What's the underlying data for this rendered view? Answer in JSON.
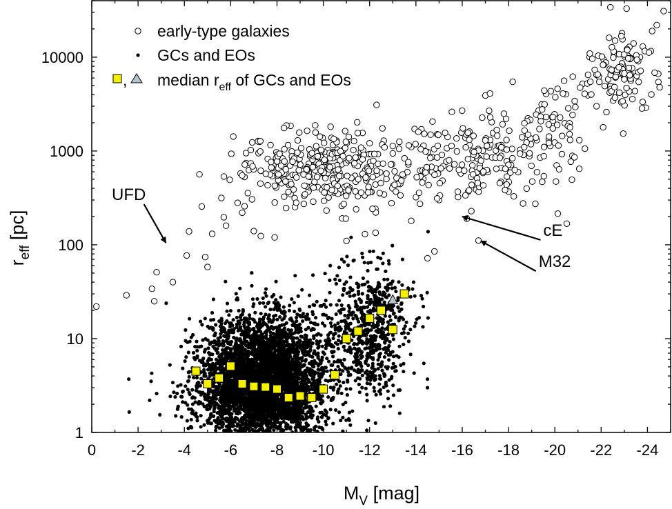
{
  "chart_data": {
    "type": "scatter",
    "title": "",
    "xlabel": {
      "main": "M",
      "sub": "V",
      "rest": " [mag]"
    },
    "ylabel": {
      "main": "r",
      "sub": "eff",
      "rest": " [pc]"
    },
    "x_scale": "linear",
    "x_reversed": true,
    "xlim": [
      0,
      -25
    ],
    "xticks": [
      0,
      -2,
      -4,
      -6,
      -8,
      -10,
      -12,
      -14,
      -16,
      -18,
      -20,
      -22,
      -24
    ],
    "y_scale": "log",
    "ylim": [
      1,
      40000
    ],
    "yticks": [
      1,
      10,
      100,
      1000,
      10000
    ],
    "legend": {
      "position": "top-left",
      "entries": [
        {
          "symbol": "open-circle",
          "label": "early-type galaxies"
        },
        {
          "symbol": "dot",
          "label": "GCs and EOs"
        },
        {
          "symbol": "square+triangle",
          "label_main": "median r",
          "label_sub": "eff",
          "label_rest": " of GCs and EOs"
        }
      ]
    },
    "colors": {
      "median_square": "#f5f000",
      "median_triangle": "#b4c4cc",
      "marker": "#000000"
    },
    "series": [
      {
        "name": "early-type galaxies",
        "marker": "open-circle",
        "points": [
          [
            -0.2,
            22
          ],
          [
            -1.5,
            29
          ],
          [
            -2.6,
            34
          ],
          [
            -2.7,
            25
          ],
          [
            -2.8,
            51
          ],
          [
            -3.5,
            40
          ],
          [
            -4.1,
            77
          ],
          [
            -4.2,
            139
          ],
          [
            -4.9,
            74
          ],
          [
            -5.0,
            58
          ],
          [
            -5.2,
            131
          ],
          [
            -5.6,
            316
          ],
          [
            -5.8,
            160
          ],
          [
            -6.3,
            280
          ],
          [
            -6.5,
            220
          ],
          [
            -6.6,
            258
          ],
          [
            -7.0,
            140
          ],
          [
            -7.3,
            124
          ],
          [
            -7.9,
            120
          ],
          [
            -8.1,
            550
          ],
          [
            -8.5,
            440
          ],
          [
            -9.0,
            680
          ],
          [
            -9.3,
            1640
          ],
          [
            -10.3,
            420.0
          ],
          [
            -10.8,
            260
          ],
          [
            -11.0,
            110
          ],
          [
            -11.5,
            330
          ],
          [
            -11.8,
            130
          ],
          [
            -12.3,
            3100
          ],
          [
            -13.0,
            1130
          ],
          [
            -13.8,
            180
          ],
          [
            -14.5,
            72
          ],
          [
            -14.8,
            85
          ],
          [
            -15.0,
            300
          ],
          [
            -16.2,
            190
          ],
          [
            -16.7,
            111
          ],
          [
            -17.0,
            3900
          ],
          [
            -17.8,
            2500
          ],
          [
            -18.5,
            1030
          ],
          [
            -19.3,
            2700
          ],
          [
            -19.8,
            1130
          ],
          [
            -20.4,
            5600
          ],
          [
            -21.3,
            1060
          ],
          [
            -21.8,
            3000
          ],
          [
            -22.1,
            9500
          ],
          [
            -22.4,
            34000
          ],
          [
            -23.1,
            33000
          ],
          [
            -23.4,
            14000
          ],
          [
            -23.8,
            13000
          ],
          [
            -24.7,
            31000
          ],
          [
            -24.4,
            22000
          ],
          [
            -24.2,
            19000
          ],
          [
            -22.9,
            18000
          ],
          [
            -22.6,
            15000
          ],
          [
            -21.9,
            6200
          ],
          [
            -21.2,
            5200
          ]
        ],
        "clusters": [
          {
            "x_center": -10.2,
            "x_sd": 2.0,
            "y_center": 640,
            "y_log_sd": 0.2,
            "count": 360
          },
          {
            "x_center": -16.5,
            "x_sd": 1.6,
            "y_center": 780,
            "y_log_sd": 0.22,
            "count": 160
          },
          {
            "x_center": -20.0,
            "x_sd": 0.9,
            "y_center": 1700,
            "y_log_sd": 0.25,
            "count": 70
          },
          {
            "x_center": -22.8,
            "x_sd": 0.8,
            "y_center": 6500,
            "y_log_sd": 0.22,
            "count": 110
          }
        ]
      },
      {
        "name": "GCs and EOs",
        "marker": "dot",
        "points": [
          [
            -1.6,
            3.7
          ],
          [
            -2.5,
            2.2
          ],
          [
            -2.8,
            2.6
          ],
          [
            -3.5,
            3.4
          ],
          [
            -9.8,
            1.3
          ],
          [
            -11.2,
            4.8
          ],
          [
            -12.8,
            2.3
          ],
          [
            -13.3,
            1.6
          ],
          [
            -14.5,
            3.7
          ],
          [
            -14.5,
            3.0
          ],
          [
            -13.9,
            40
          ],
          [
            -11.2,
            120
          ],
          [
            -10.8,
            70
          ],
          [
            -10.3,
            60
          ],
          [
            -12.3,
            55
          ]
        ],
        "clusters": [
          {
            "x_center": -7.4,
            "x_sd": 1.35,
            "y_center": 3.3,
            "y_log_sd": 0.33,
            "count": 4200
          },
          {
            "x_center": -12.0,
            "x_sd": 0.75,
            "y_center": 11,
            "y_log_sd": 0.32,
            "count": 520
          },
          {
            "x_center": -8.5,
            "x_sd": 1.6,
            "y_center": 11,
            "y_log_sd": 0.28,
            "count": 220
          },
          {
            "x_center": -12.4,
            "x_sd": 0.9,
            "y_center": 22,
            "y_log_sd": 0.25,
            "count": 120
          }
        ]
      },
      {
        "name": "median r_eff (squares)",
        "marker": "square",
        "points": [
          [
            -4.5,
            4.5
          ],
          [
            -5.0,
            3.3
          ],
          [
            -5.5,
            3.8
          ],
          [
            -6.0,
            5.1
          ],
          [
            -6.5,
            3.3
          ],
          [
            -7.0,
            3.1
          ],
          [
            -7.5,
            3.05
          ],
          [
            -8.0,
            2.9
          ],
          [
            -8.5,
            2.35
          ],
          [
            -9.0,
            2.45
          ],
          [
            -9.5,
            2.35
          ],
          [
            -10.0,
            2.9
          ],
          [
            -10.5,
            4.1
          ],
          [
            -11.0,
            10.0
          ],
          [
            -11.5,
            12.0
          ],
          [
            -12.0,
            16.5
          ],
          [
            -12.5,
            20.0
          ],
          [
            -13.0,
            12.5
          ],
          [
            -13.5,
            30.0
          ]
        ]
      },
      {
        "name": "median r_eff (triangle)",
        "marker": "triangle",
        "points": [
          [
            -13.0,
            26.0
          ]
        ]
      }
    ],
    "annotations": [
      {
        "text": "UFD",
        "tip": [
          -3.2,
          105
        ],
        "text_at": [
          -1.6,
          300
        ]
      },
      {
        "text": "cE",
        "tip": [
          -16.0,
          200
        ],
        "text_at": [
          -19.5,
          125
        ]
      },
      {
        "text": "M32",
        "tip": [
          -16.8,
          110
        ],
        "text_at": [
          -19.3,
          58
        ]
      }
    ]
  }
}
